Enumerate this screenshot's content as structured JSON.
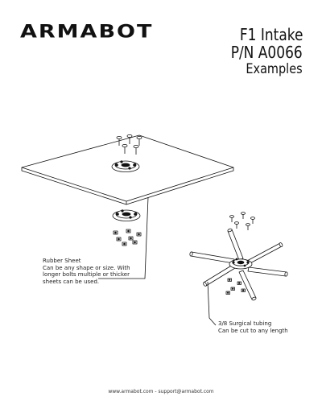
{
  "header": {
    "logo": "ARMABOT",
    "title": "F1 Intake",
    "part_number": "P/N A0066",
    "subtitle": "Examples"
  },
  "notes": {
    "rubber_sheet": [
      "Rubber Sheet",
      "Can be any shape or size. With",
      "longer bolts multiple or thicker",
      "sheets can be used."
    ],
    "tubing": [
      "3/8 Surgical tubing",
      "Can be cut to any length"
    ]
  },
  "footer": "www.armabot.com - support@armabot.com",
  "colors": {
    "line": "#111111",
    "background": "#ffffff"
  }
}
